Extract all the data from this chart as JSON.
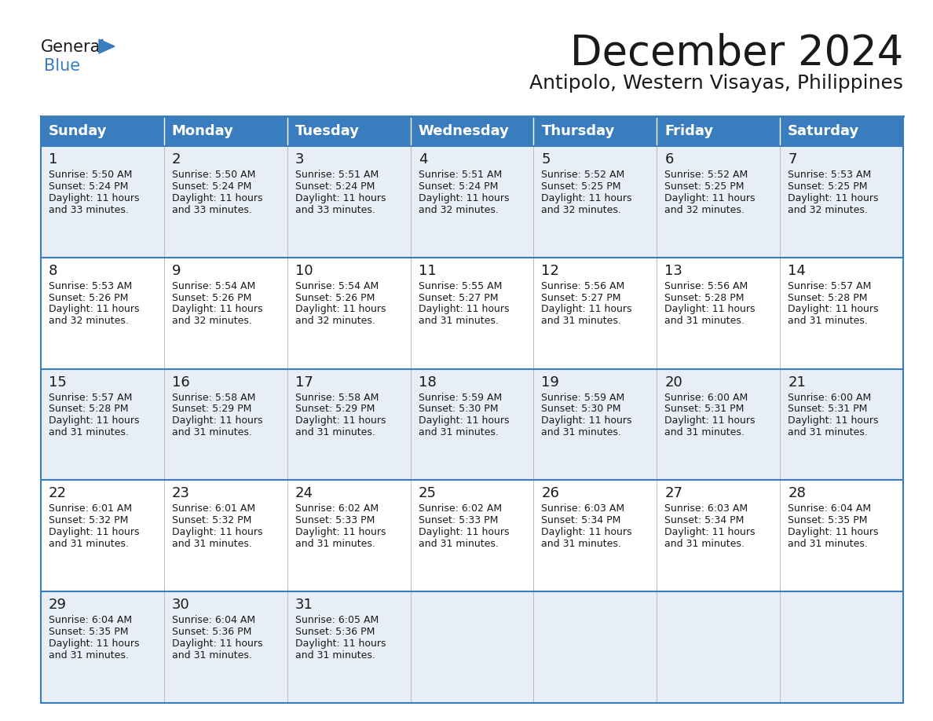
{
  "title": "December 2024",
  "subtitle": "Antipolo, Western Visayas, Philippines",
  "header_bg_color": "#3a7dbf",
  "header_text_color": "#ffffff",
  "row_bg_odd": "#e8eef5",
  "row_bg_even": "#ffffff",
  "border_color": "#3a7dbf",
  "text_color": "#1a1a1a",
  "day_names": [
    "Sunday",
    "Monday",
    "Tuesday",
    "Wednesday",
    "Thursday",
    "Friday",
    "Saturday"
  ],
  "days": [
    {
      "day": 1,
      "col": 0,
      "row": 0,
      "sunrise": "5:50 AM",
      "sunset": "5:24 PM",
      "daylight": "11 hours and 33 minutes."
    },
    {
      "day": 2,
      "col": 1,
      "row": 0,
      "sunrise": "5:50 AM",
      "sunset": "5:24 PM",
      "daylight": "11 hours and 33 minutes."
    },
    {
      "day": 3,
      "col": 2,
      "row": 0,
      "sunrise": "5:51 AM",
      "sunset": "5:24 PM",
      "daylight": "11 hours and 33 minutes."
    },
    {
      "day": 4,
      "col": 3,
      "row": 0,
      "sunrise": "5:51 AM",
      "sunset": "5:24 PM",
      "daylight": "11 hours and 32 minutes."
    },
    {
      "day": 5,
      "col": 4,
      "row": 0,
      "sunrise": "5:52 AM",
      "sunset": "5:25 PM",
      "daylight": "11 hours and 32 minutes."
    },
    {
      "day": 6,
      "col": 5,
      "row": 0,
      "sunrise": "5:52 AM",
      "sunset": "5:25 PM",
      "daylight": "11 hours and 32 minutes."
    },
    {
      "day": 7,
      "col": 6,
      "row": 0,
      "sunrise": "5:53 AM",
      "sunset": "5:25 PM",
      "daylight": "11 hours and 32 minutes."
    },
    {
      "day": 8,
      "col": 0,
      "row": 1,
      "sunrise": "5:53 AM",
      "sunset": "5:26 PM",
      "daylight": "11 hours and 32 minutes."
    },
    {
      "day": 9,
      "col": 1,
      "row": 1,
      "sunrise": "5:54 AM",
      "sunset": "5:26 PM",
      "daylight": "11 hours and 32 minutes."
    },
    {
      "day": 10,
      "col": 2,
      "row": 1,
      "sunrise": "5:54 AM",
      "sunset": "5:26 PM",
      "daylight": "11 hours and 32 minutes."
    },
    {
      "day": 11,
      "col": 3,
      "row": 1,
      "sunrise": "5:55 AM",
      "sunset": "5:27 PM",
      "daylight": "11 hours and 31 minutes."
    },
    {
      "day": 12,
      "col": 4,
      "row": 1,
      "sunrise": "5:56 AM",
      "sunset": "5:27 PM",
      "daylight": "11 hours and 31 minutes."
    },
    {
      "day": 13,
      "col": 5,
      "row": 1,
      "sunrise": "5:56 AM",
      "sunset": "5:28 PM",
      "daylight": "11 hours and 31 minutes."
    },
    {
      "day": 14,
      "col": 6,
      "row": 1,
      "sunrise": "5:57 AM",
      "sunset": "5:28 PM",
      "daylight": "11 hours and 31 minutes."
    },
    {
      "day": 15,
      "col": 0,
      "row": 2,
      "sunrise": "5:57 AM",
      "sunset": "5:28 PM",
      "daylight": "11 hours and 31 minutes."
    },
    {
      "day": 16,
      "col": 1,
      "row": 2,
      "sunrise": "5:58 AM",
      "sunset": "5:29 PM",
      "daylight": "11 hours and 31 minutes."
    },
    {
      "day": 17,
      "col": 2,
      "row": 2,
      "sunrise": "5:58 AM",
      "sunset": "5:29 PM",
      "daylight": "11 hours and 31 minutes."
    },
    {
      "day": 18,
      "col": 3,
      "row": 2,
      "sunrise": "5:59 AM",
      "sunset": "5:30 PM",
      "daylight": "11 hours and 31 minutes."
    },
    {
      "day": 19,
      "col": 4,
      "row": 2,
      "sunrise": "5:59 AM",
      "sunset": "5:30 PM",
      "daylight": "11 hours and 31 minutes."
    },
    {
      "day": 20,
      "col": 5,
      "row": 2,
      "sunrise": "6:00 AM",
      "sunset": "5:31 PM",
      "daylight": "11 hours and 31 minutes."
    },
    {
      "day": 21,
      "col": 6,
      "row": 2,
      "sunrise": "6:00 AM",
      "sunset": "5:31 PM",
      "daylight": "11 hours and 31 minutes."
    },
    {
      "day": 22,
      "col": 0,
      "row": 3,
      "sunrise": "6:01 AM",
      "sunset": "5:32 PM",
      "daylight": "11 hours and 31 minutes."
    },
    {
      "day": 23,
      "col": 1,
      "row": 3,
      "sunrise": "6:01 AM",
      "sunset": "5:32 PM",
      "daylight": "11 hours and 31 minutes."
    },
    {
      "day": 24,
      "col": 2,
      "row": 3,
      "sunrise": "6:02 AM",
      "sunset": "5:33 PM",
      "daylight": "11 hours and 31 minutes."
    },
    {
      "day": 25,
      "col": 3,
      "row": 3,
      "sunrise": "6:02 AM",
      "sunset": "5:33 PM",
      "daylight": "11 hours and 31 minutes."
    },
    {
      "day": 26,
      "col": 4,
      "row": 3,
      "sunrise": "6:03 AM",
      "sunset": "5:34 PM",
      "daylight": "11 hours and 31 minutes."
    },
    {
      "day": 27,
      "col": 5,
      "row": 3,
      "sunrise": "6:03 AM",
      "sunset": "5:34 PM",
      "daylight": "11 hours and 31 minutes."
    },
    {
      "day": 28,
      "col": 6,
      "row": 3,
      "sunrise": "6:04 AM",
      "sunset": "5:35 PM",
      "daylight": "11 hours and 31 minutes."
    },
    {
      "day": 29,
      "col": 0,
      "row": 4,
      "sunrise": "6:04 AM",
      "sunset": "5:35 PM",
      "daylight": "11 hours and 31 minutes."
    },
    {
      "day": 30,
      "col": 1,
      "row": 4,
      "sunrise": "6:04 AM",
      "sunset": "5:36 PM",
      "daylight": "11 hours and 31 minutes."
    },
    {
      "day": 31,
      "col": 2,
      "row": 4,
      "sunrise": "6:05 AM",
      "sunset": "5:36 PM",
      "daylight": "11 hours and 31 minutes."
    }
  ],
  "logo_text1": "General",
  "logo_text2": "Blue",
  "logo_color1": "#1a1a1a",
  "logo_color2": "#3a7dbf",
  "logo_triangle_color": "#3a7dbf",
  "title_fontsize": 38,
  "subtitle_fontsize": 18,
  "header_fontsize": 13,
  "day_num_fontsize": 13,
  "cell_fontsize": 9
}
